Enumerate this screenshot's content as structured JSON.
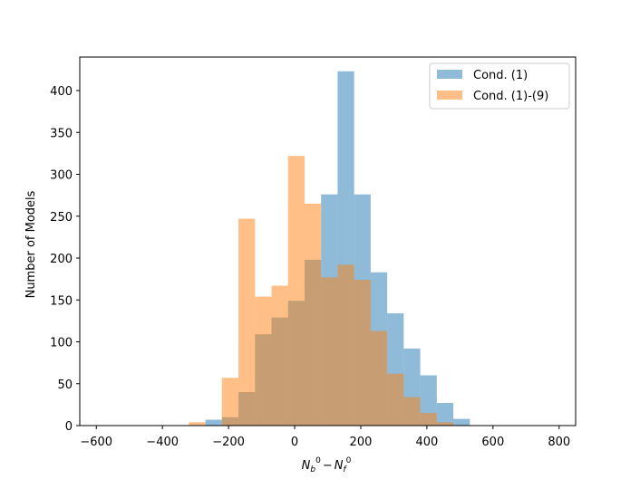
{
  "chart_data": {
    "type": "histogram",
    "title": "",
    "xlabel": "N_b^0 − N_f^0",
    "xlabel_parts": {
      "base1": "N",
      "sub1": "b",
      "sup1": "0",
      "minus": "−",
      "base2": "N",
      "sub2": "f",
      "sup2": "0"
    },
    "ylabel": "Number of Models",
    "xlim": [
      -650,
      850
    ],
    "ylim": [
      0,
      440
    ],
    "xticks": [
      -600,
      -400,
      -200,
      0,
      200,
      400,
      600,
      800
    ],
    "xtick_labels": [
      "−600",
      "−400",
      "−200",
      "0",
      "200",
      "400",
      "600",
      "800"
    ],
    "yticks": [
      0,
      50,
      100,
      150,
      200,
      250,
      300,
      350,
      400
    ],
    "ytick_labels": [
      "0",
      "50",
      "100",
      "150",
      "200",
      "250",
      "300",
      "350",
      "400"
    ],
    "grid": false,
    "legend": "top-right",
    "series": [
      {
        "name": "Cond. (1)",
        "color": "#1f77b4",
        "alpha": 0.5,
        "bins": [
          {
            "x0": -270,
            "x1": -220,
            "value": 7
          },
          {
            "x0": -220,
            "x1": -170,
            "value": 10
          },
          {
            "x0": -170,
            "x1": -120,
            "value": 40
          },
          {
            "x0": -120,
            "x1": -70,
            "value": 109
          },
          {
            "x0": -70,
            "x1": -20,
            "value": 129
          },
          {
            "x0": -20,
            "x1": 30,
            "value": 149
          },
          {
            "x0": 30,
            "x1": 80,
            "value": 198
          },
          {
            "x0": 80,
            "x1": 130,
            "value": 276
          },
          {
            "x0": 130,
            "x1": 180,
            "value": 423
          },
          {
            "x0": 180,
            "x1": 230,
            "value": 276
          },
          {
            "x0": 230,
            "x1": 280,
            "value": 183
          },
          {
            "x0": 280,
            "x1": 330,
            "value": 134
          },
          {
            "x0": 330,
            "x1": 380,
            "value": 92
          },
          {
            "x0": 380,
            "x1": 430,
            "value": 60
          },
          {
            "x0": 430,
            "x1": 480,
            "value": 27
          },
          {
            "x0": 480,
            "x1": 530,
            "value": 8
          }
        ]
      },
      {
        "name": "Cond. (1)-(9)",
        "color": "#ff7f0e",
        "alpha": 0.5,
        "bins": [
          {
            "x0": -320,
            "x1": -270,
            "value": 4
          },
          {
            "x0": -270,
            "x1": -220,
            "value": 0
          },
          {
            "x0": -220,
            "x1": -170,
            "value": 57
          },
          {
            "x0": -170,
            "x1": -120,
            "value": 247
          },
          {
            "x0": -120,
            "x1": -70,
            "value": 154
          },
          {
            "x0": -70,
            "x1": -20,
            "value": 167
          },
          {
            "x0": -20,
            "x1": 30,
            "value": 322
          },
          {
            "x0": 30,
            "x1": 80,
            "value": 265
          },
          {
            "x0": 80,
            "x1": 130,
            "value": 177
          },
          {
            "x0": 130,
            "x1": 180,
            "value": 192
          },
          {
            "x0": 180,
            "x1": 230,
            "value": 174
          },
          {
            "x0": 230,
            "x1": 280,
            "value": 113
          },
          {
            "x0": 280,
            "x1": 330,
            "value": 62
          },
          {
            "x0": 330,
            "x1": 380,
            "value": 34
          },
          {
            "x0": 380,
            "x1": 430,
            "value": 15
          },
          {
            "x0": 430,
            "x1": 480,
            "value": 4
          }
        ]
      }
    ]
  }
}
